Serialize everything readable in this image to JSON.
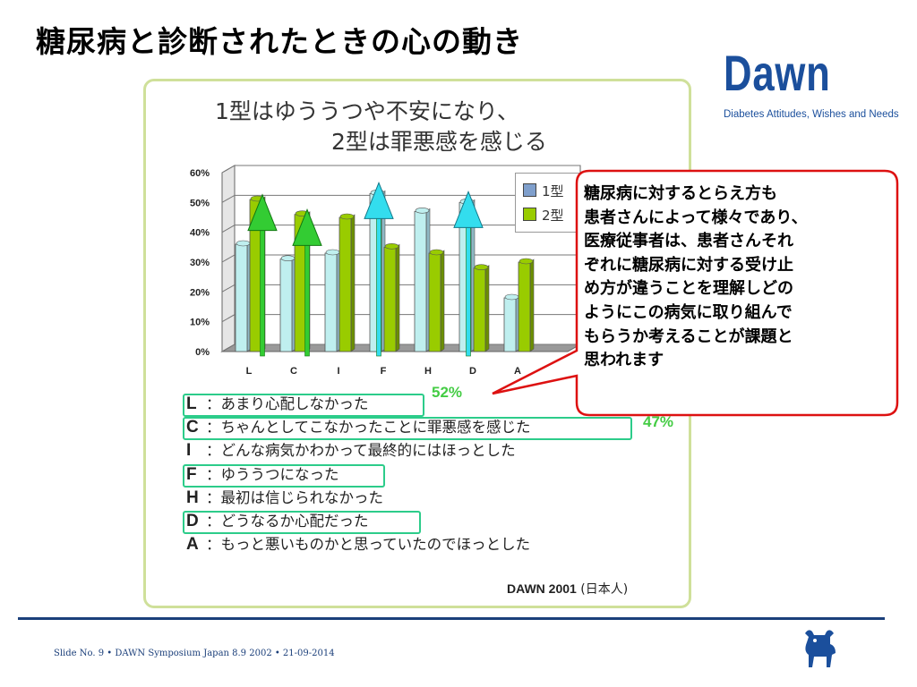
{
  "slide": {
    "title": "糖尿病と診断されたときの心の動き",
    "footer": "Slide No. 9 • DAWN Symposium Japan 8.9 2002 • 21-09-2014"
  },
  "logo": {
    "word": "Dawn",
    "subtitle": "Diabetes Attitudes, Wishes and Needs"
  },
  "chart_data": {
    "type": "bar",
    "title_line1": "1型はゆううつや不安になり、",
    "title_line2": "2型は罪悪感を感じる",
    "categories": [
      "L",
      "C",
      "I",
      "F",
      "H",
      "D",
      "A"
    ],
    "series": [
      {
        "name": "1型",
        "values": [
          36,
          31,
          33,
          53,
          47,
          50,
          18
        ]
      },
      {
        "name": "2型",
        "values": [
          51,
          46,
          45,
          35,
          33,
          28,
          30
        ]
      }
    ],
    "y_ticks": [
      "0%",
      "10%",
      "20%",
      "30%",
      "40%",
      "50%",
      "60%"
    ],
    "ylim": [
      0,
      60
    ],
    "legend_position": "top-right",
    "colors": {
      "type1": "#bfefef",
      "type2": "#99cc00"
    },
    "annotations": [
      "52%",
      "47%"
    ],
    "arrows": [
      {
        "category": "L",
        "color": "#33cc33",
        "value": 49
      },
      {
        "category": "C",
        "color": "#33cc33",
        "value": 44
      },
      {
        "category": "F",
        "color": "#33ddee",
        "value": 53
      },
      {
        "category": "D",
        "color": "#33ddee",
        "value": 50
      }
    ],
    "source_bold": "DAWN 2001",
    "source_note": "(日本人)"
  },
  "items": [
    {
      "code": "L",
      "text": "：あまり心配しなかった"
    },
    {
      "code": "C",
      "text": "：ちゃんとしてこなかったことに罪悪感を感じた"
    },
    {
      "code": "I",
      "text": "：どんな病気かわかって最終的にはほっとした"
    },
    {
      "code": "F",
      "text": "：ゆううつになった"
    },
    {
      "code": "H",
      "text": "：最初は信じられなかった"
    },
    {
      "code": "D",
      "text": "：どうなるか心配だった"
    },
    {
      "code": "A",
      "text": "：もっと悪いものかと思っていたのでほっとした"
    }
  ],
  "callout": {
    "lines": [
      "糖尿病に対するとらえ方も",
      "患者さんによって様々であり、",
      "医療従事者は、患者さんそれ",
      "ぞれに糖尿病に対する受け止",
      "め方が違うことを理解しどの",
      "ようにこの病気に取り組んで",
      "もらうか考えることが課題と",
      "思われます"
    ]
  }
}
